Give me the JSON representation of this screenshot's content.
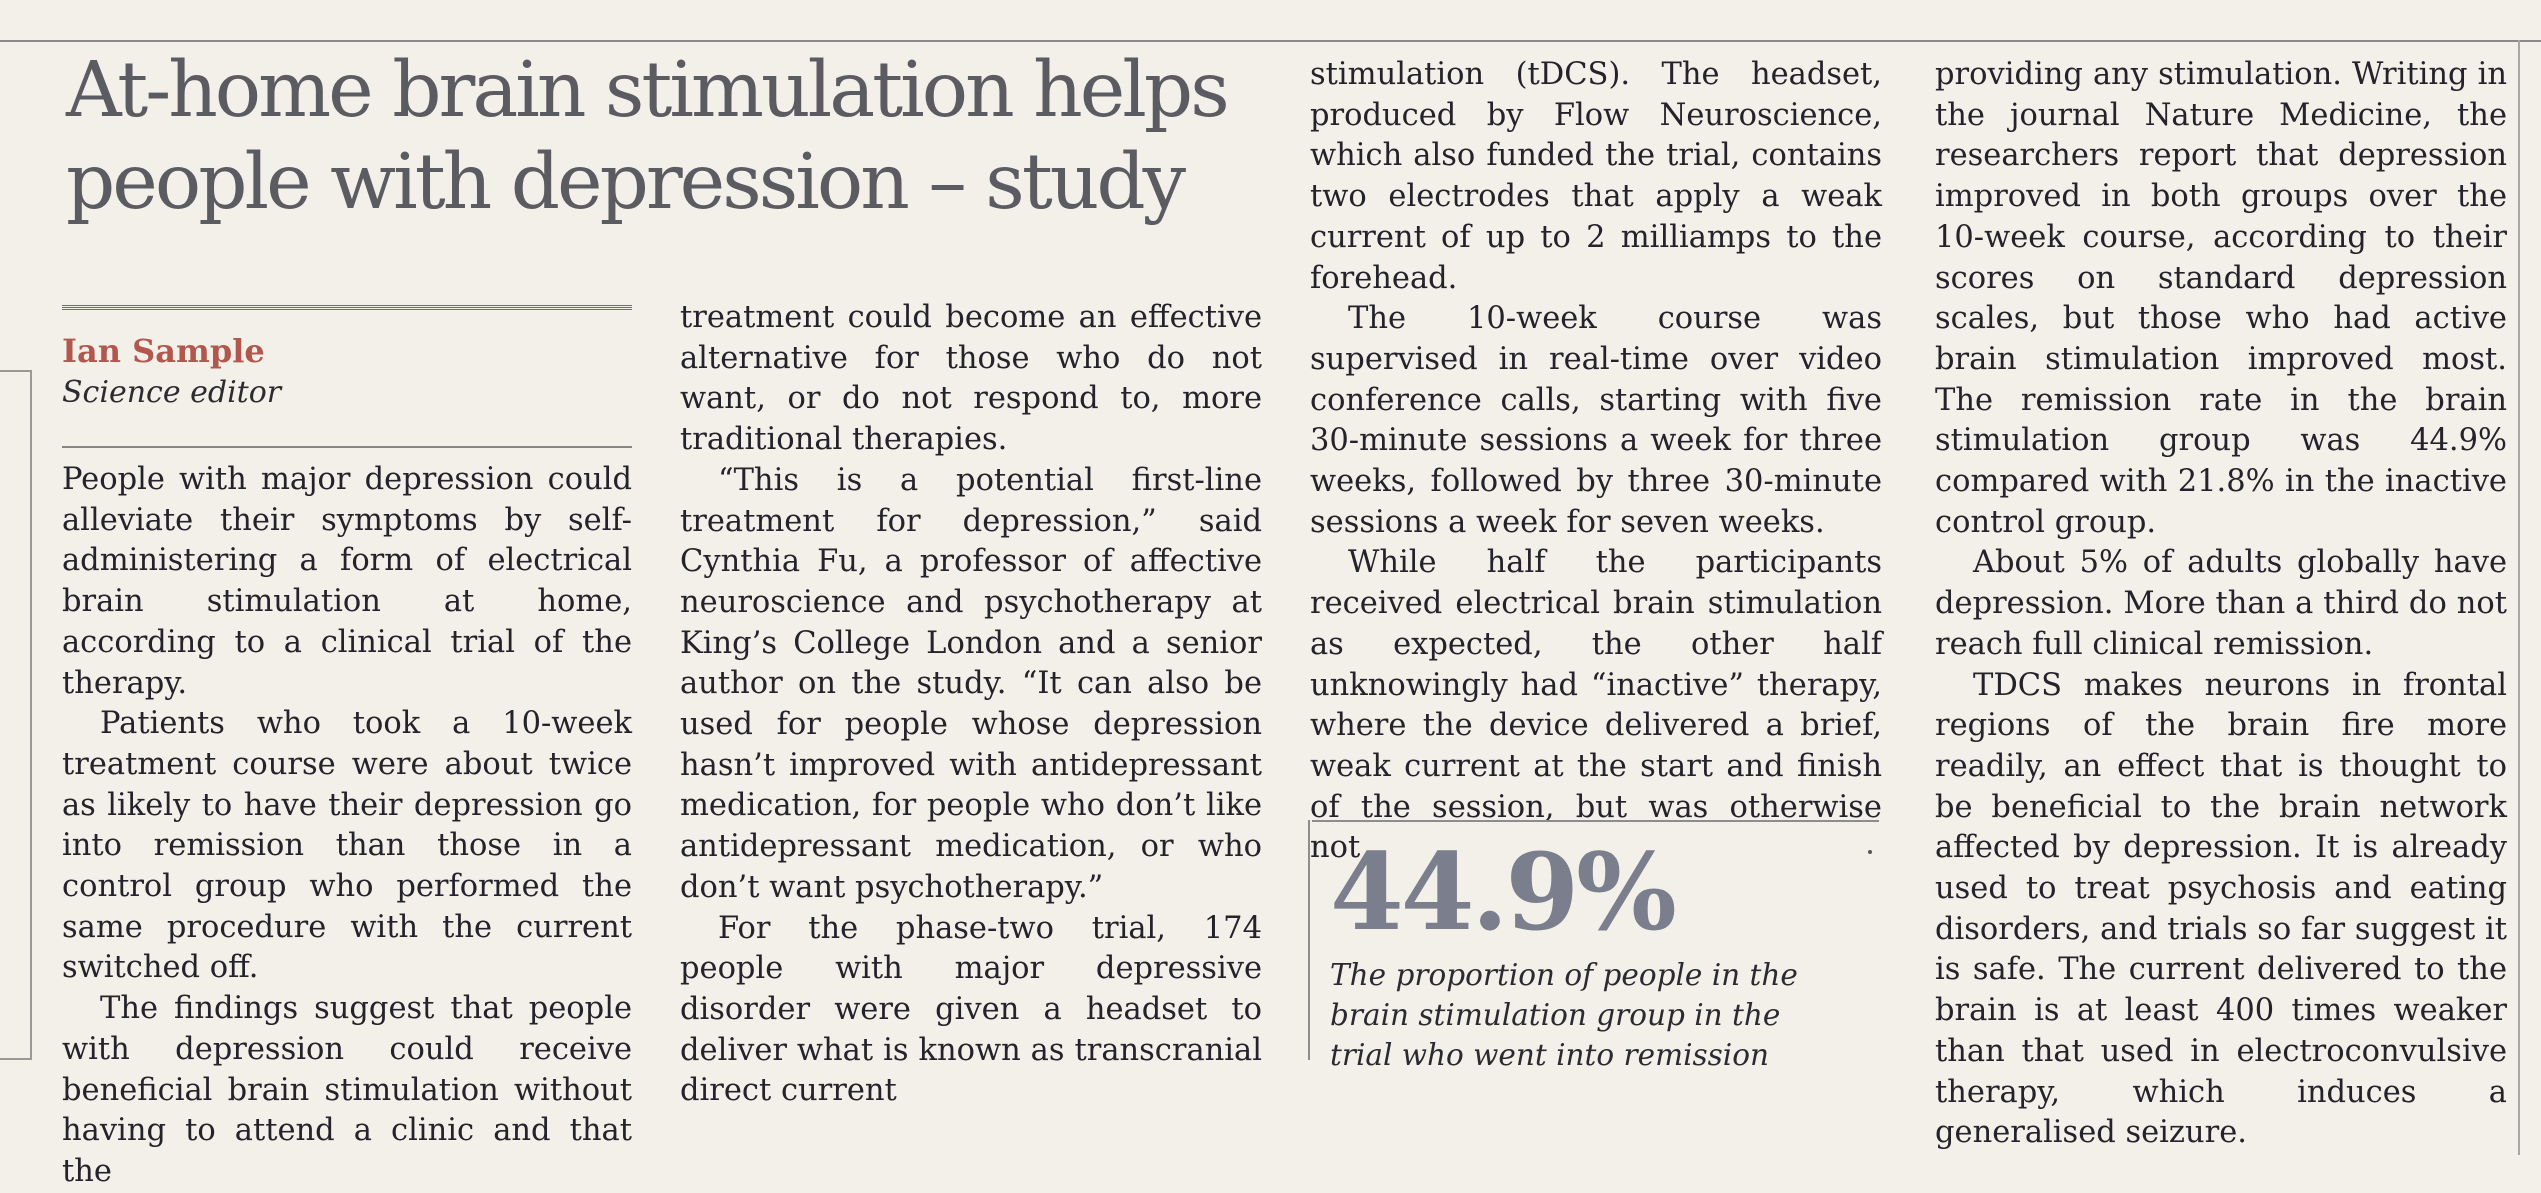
{
  "headline": "At-home brain stimulation helps people with depression – study",
  "byline": {
    "name": "Ian Sample",
    "role": "Science editor"
  },
  "columns": [
    {
      "paragraphs": [
        "People with major depression could alleviate their symptoms by self-administering a form of electrical brain stimulation at home, according to a clinical trial of the therapy.",
        "Patients who took a 10-week treatment course were about twice as likely to have their depression go into remission than those in a control group who performed the same procedure with the current switched off.",
        "The findings suggest that people with depression could receive beneficial brain stimulation without having to attend a clinic and that the"
      ]
    },
    {
      "paragraphs": [
        "treatment could become an effective alternative for those who do not want, or do not respond to, more traditional therapies.",
        "“This is a potential first-line treatment for depression,” said Cynthia Fu, a professor of affective neuroscience and psychotherapy at King’s College London and a senior author on the study. “It can also be used for people whose depression hasn’t improved with antidepressant medication, for people who don’t like antidepressant medication, or who don’t want psychotherapy.”",
        "For the phase-two trial, 174 people with major depressive disorder were given a headset to deliver what is known as transcranial direct current"
      ]
    },
    {
      "paragraphs": [
        "stimulation (tDCS). The headset, produced by Flow Neuroscience, which also funded the trial, contains two electrodes that apply a weak current of up to 2 milliamps to the forehead.",
        "The 10-week course was supervised in real-time over video conference calls, starting with five 30-minute sessions a week for three weeks, followed by three 30-minute sessions a week for seven weeks.",
        "While half the participants received electrical brain stimulation as expected, the other half unknowingly had “inactive” therapy, where the device delivered a brief, weak current at the start and finish of the session, but was otherwise not"
      ]
    },
    {
      "paragraphs": [
        "providing any stimulation. Writing in the journal Nature Medicine, the researchers report that depression improved in both groups over the 10-week course, according to their scores on standard depression scales, but those who had active brain stimulation improved most. The remission rate in the brain stimulation group was 44.9% compared with 21.8% in the inactive control group.",
        "About 5% of adults globally have depression. More than a third do not reach full clinical remission.",
        "TDCS makes neurons in frontal regions of the brain fire more readily, an effect that is thought to be beneficial to the brain network affected by depression. It is already used to treat psychosis and eating disorders, and trials so far suggest it is safe. The current delivered to the brain is at least 400 times weaker than that used in electroconvulsive therapy, which induces a generalised seizure."
      ]
    }
  ],
  "pull_quote": {
    "number": "44.9%",
    "caption": "The proportion of people in the brain stimulation group in the trial who went into remission"
  }
}
